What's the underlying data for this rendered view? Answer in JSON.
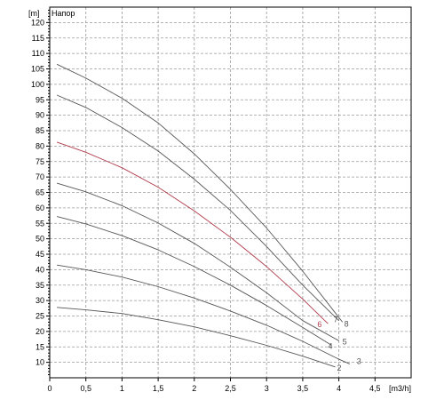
{
  "chart_data": {
    "type": "line",
    "title": "Напор",
    "ylabel": "[m]",
    "xlabel": "[m3/h]",
    "xlim": [
      0,
      5
    ],
    "ylim": [
      5,
      125
    ],
    "x_ticks": [
      "0",
      "0,5",
      "1",
      "1,5",
      "2",
      "2,5",
      "3",
      "3,5",
      "4",
      "4,5"
    ],
    "y_ticks": [
      "10",
      "15",
      "20",
      "25",
      "30",
      "35",
      "40",
      "45",
      "50",
      "55",
      "60",
      "65",
      "70",
      "75",
      "80",
      "85",
      "90",
      "95",
      "100",
      "105",
      "110",
      "115",
      "120"
    ],
    "grid": true,
    "series": [
      {
        "name": "2",
        "color": "#555555",
        "x": [
          0.1,
          0.5,
          1,
          1.5,
          2,
          2.5,
          3,
          3.5,
          3.95
        ],
        "y": [
          27.8,
          27,
          25.8,
          23.8,
          21.5,
          18.6,
          15.5,
          12,
          8.5
        ]
      },
      {
        "name": "3",
        "color": "#555555",
        "x": [
          0.1,
          0.5,
          1,
          1.5,
          2,
          2.5,
          3,
          3.5,
          4,
          4.15
        ],
        "y": [
          41.5,
          40,
          37.6,
          34.5,
          30.8,
          26.6,
          22,
          16.8,
          11,
          9.5
        ]
      },
      {
        "name": "4",
        "color": "#555555",
        "x": [
          0.1,
          0.5,
          1,
          1.5,
          2,
          2.5,
          3,
          3.5,
          3.9
        ],
        "y": [
          57.2,
          54.8,
          51,
          46.4,
          41,
          35,
          28.4,
          21.3,
          15.5
        ]
      },
      {
        "name": "5",
        "color": "#555555",
        "x": [
          0.1,
          0.5,
          1,
          1.5,
          2,
          2.5,
          3,
          3.5,
          4.0
        ],
        "y": [
          68,
          65.2,
          60.7,
          55.1,
          48.5,
          40.8,
          32.5,
          23.5,
          17
        ]
      },
      {
        "name": "6",
        "color": "#b03a4a",
        "x": [
          0.1,
          0.5,
          1,
          1.5,
          2,
          2.5,
          3,
          3.5,
          3.85
        ],
        "y": [
          81.3,
          78,
          73,
          66.7,
          59,
          50.5,
          41,
          30.5,
          22.5
        ]
      },
      {
        "name": "7",
        "color": "#555555",
        "x": [
          0.1,
          0.5,
          1,
          1.5,
          2,
          2.5,
          3,
          3.5,
          4.0
        ],
        "y": [
          96.5,
          92.5,
          86,
          78.4,
          69.3,
          59.2,
          47.5,
          35,
          23.5
        ]
      },
      {
        "name": "8",
        "color": "#555555",
        "x": [
          0.1,
          0.5,
          1,
          1.5,
          2,
          2.5,
          3,
          3.5,
          4.05
        ],
        "y": [
          106.5,
          102,
          95.5,
          87.5,
          77.5,
          66,
          53.5,
          39.5,
          23
        ]
      }
    ]
  }
}
